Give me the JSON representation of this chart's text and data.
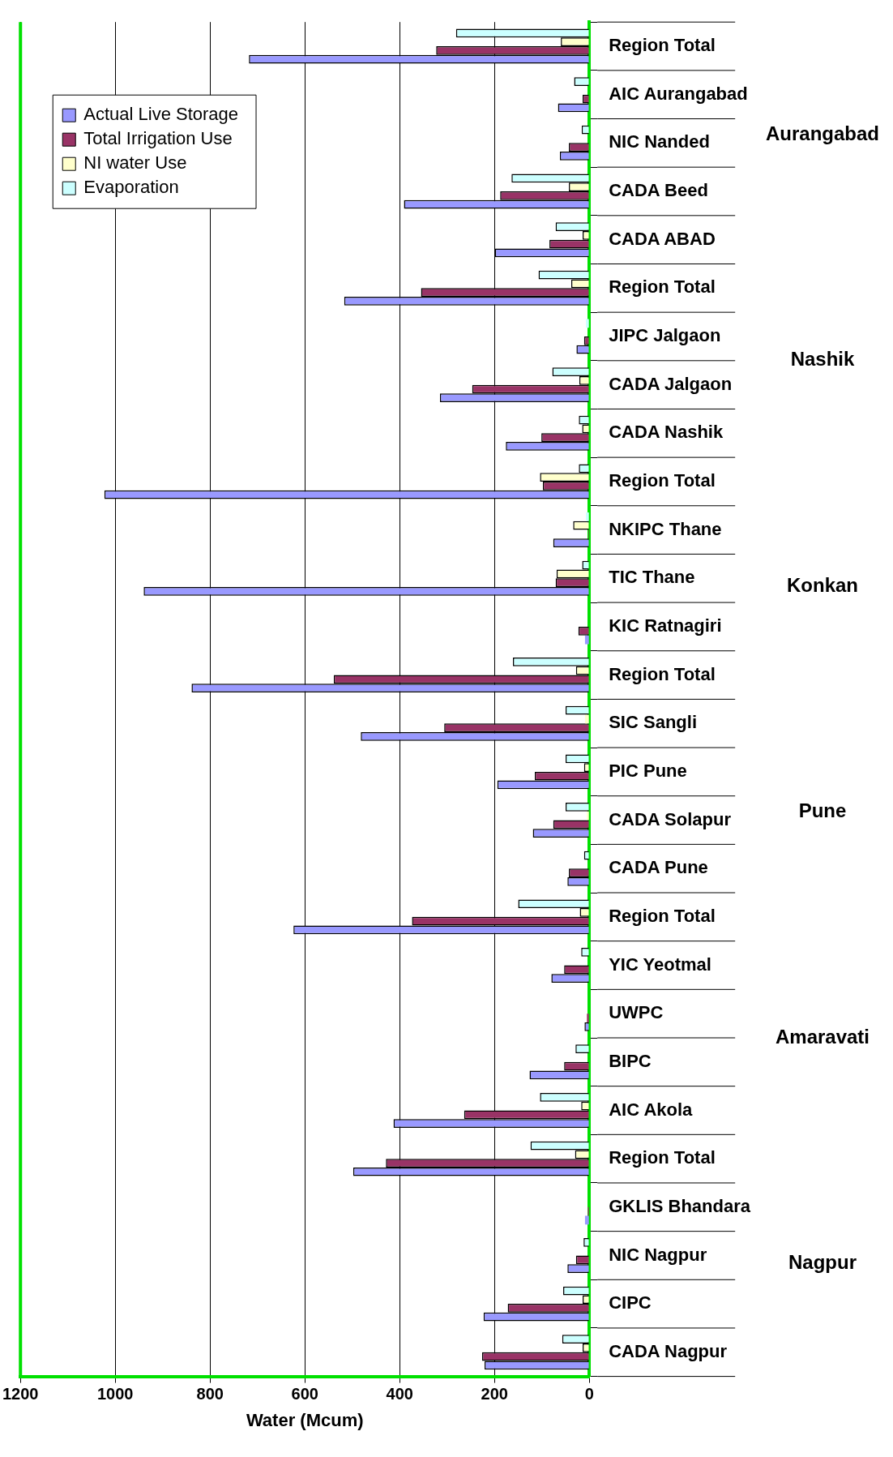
{
  "chart_data": {
    "type": "bar",
    "orientation": "horizontal",
    "xlabel": "Water (Mcum)",
    "categories": [
      "Region Total",
      "AIC Aurangabad",
      "NIC Nanded",
      "CADA Beed",
      "CADA ABAD",
      "Region Total",
      "JIPC Jalgaon",
      "CADA Jalgaon",
      "CADA Nashik",
      "Region Total",
      "NKIPC Thane",
      "TIC Thane",
      "KIC Ratnagiri",
      "Region Total",
      "SIC Sangli",
      "PIC Pune",
      "CADA Solapur",
      "CADA Pune",
      "Region Total",
      "YIC Yeotmal",
      "UWPC",
      "BIPC",
      "AIC Akola",
      "Region Total",
      "GKLIS Bhandara",
      "NIC Nagpur",
      "CIPC",
      "CADA Nagpur"
    ],
    "series": [
      {
        "name": "Actual Live Storage",
        "color": "#9999ff",
        "values": [
          718,
          66,
          62,
          391,
          199,
          517,
          27,
          315,
          176,
          1023,
          76,
          940,
          9,
          839,
          482,
          194,
          119,
          46,
          624,
          80,
          10,
          126,
          413,
          498,
          9,
          46,
          223,
          221
        ]
      },
      {
        "name": "Total Irrigation Use",
        "color": "#993366",
        "values": [
          323,
          14,
          43,
          188,
          84,
          355,
          11,
          247,
          101,
          98,
          2,
          71,
          23,
          539,
          306,
          115,
          76,
          43,
          374,
          53,
          5,
          53,
          264,
          429,
          3,
          28,
          172,
          226
        ]
      },
      {
        "name": "NI water Use",
        "color": "#ffffcc",
        "values": [
          60,
          0,
          null,
          43,
          14,
          38,
          0,
          21,
          15,
          104,
          34,
          69,
          0,
          28,
          9,
          11,
          5,
          null,
          20,
          0,
          0,
          0,
          17,
          30,
          0,
          0,
          14,
          14
        ]
      },
      {
        "name": "Evaporation",
        "color": "#ccffff",
        "values": [
          281,
          32,
          16,
          164,
          71,
          107,
          7,
          78,
          22,
          22,
          7,
          15,
          0,
          161,
          50,
          50,
          50,
          11,
          150,
          17,
          null,
          29,
          104,
          124,
          null,
          12,
          55,
          57
        ]
      }
    ],
    "xlim": [
      1200,
      0
    ],
    "xticks": [
      1200,
      1000,
      800,
      600,
      400,
      200,
      0
    ],
    "grid": "x",
    "legend": "top left",
    "annotations": [
      "Aurangabad",
      "Nashik",
      "Konkan",
      "Pune",
      "Amaravati",
      "Nagpur"
    ]
  }
}
